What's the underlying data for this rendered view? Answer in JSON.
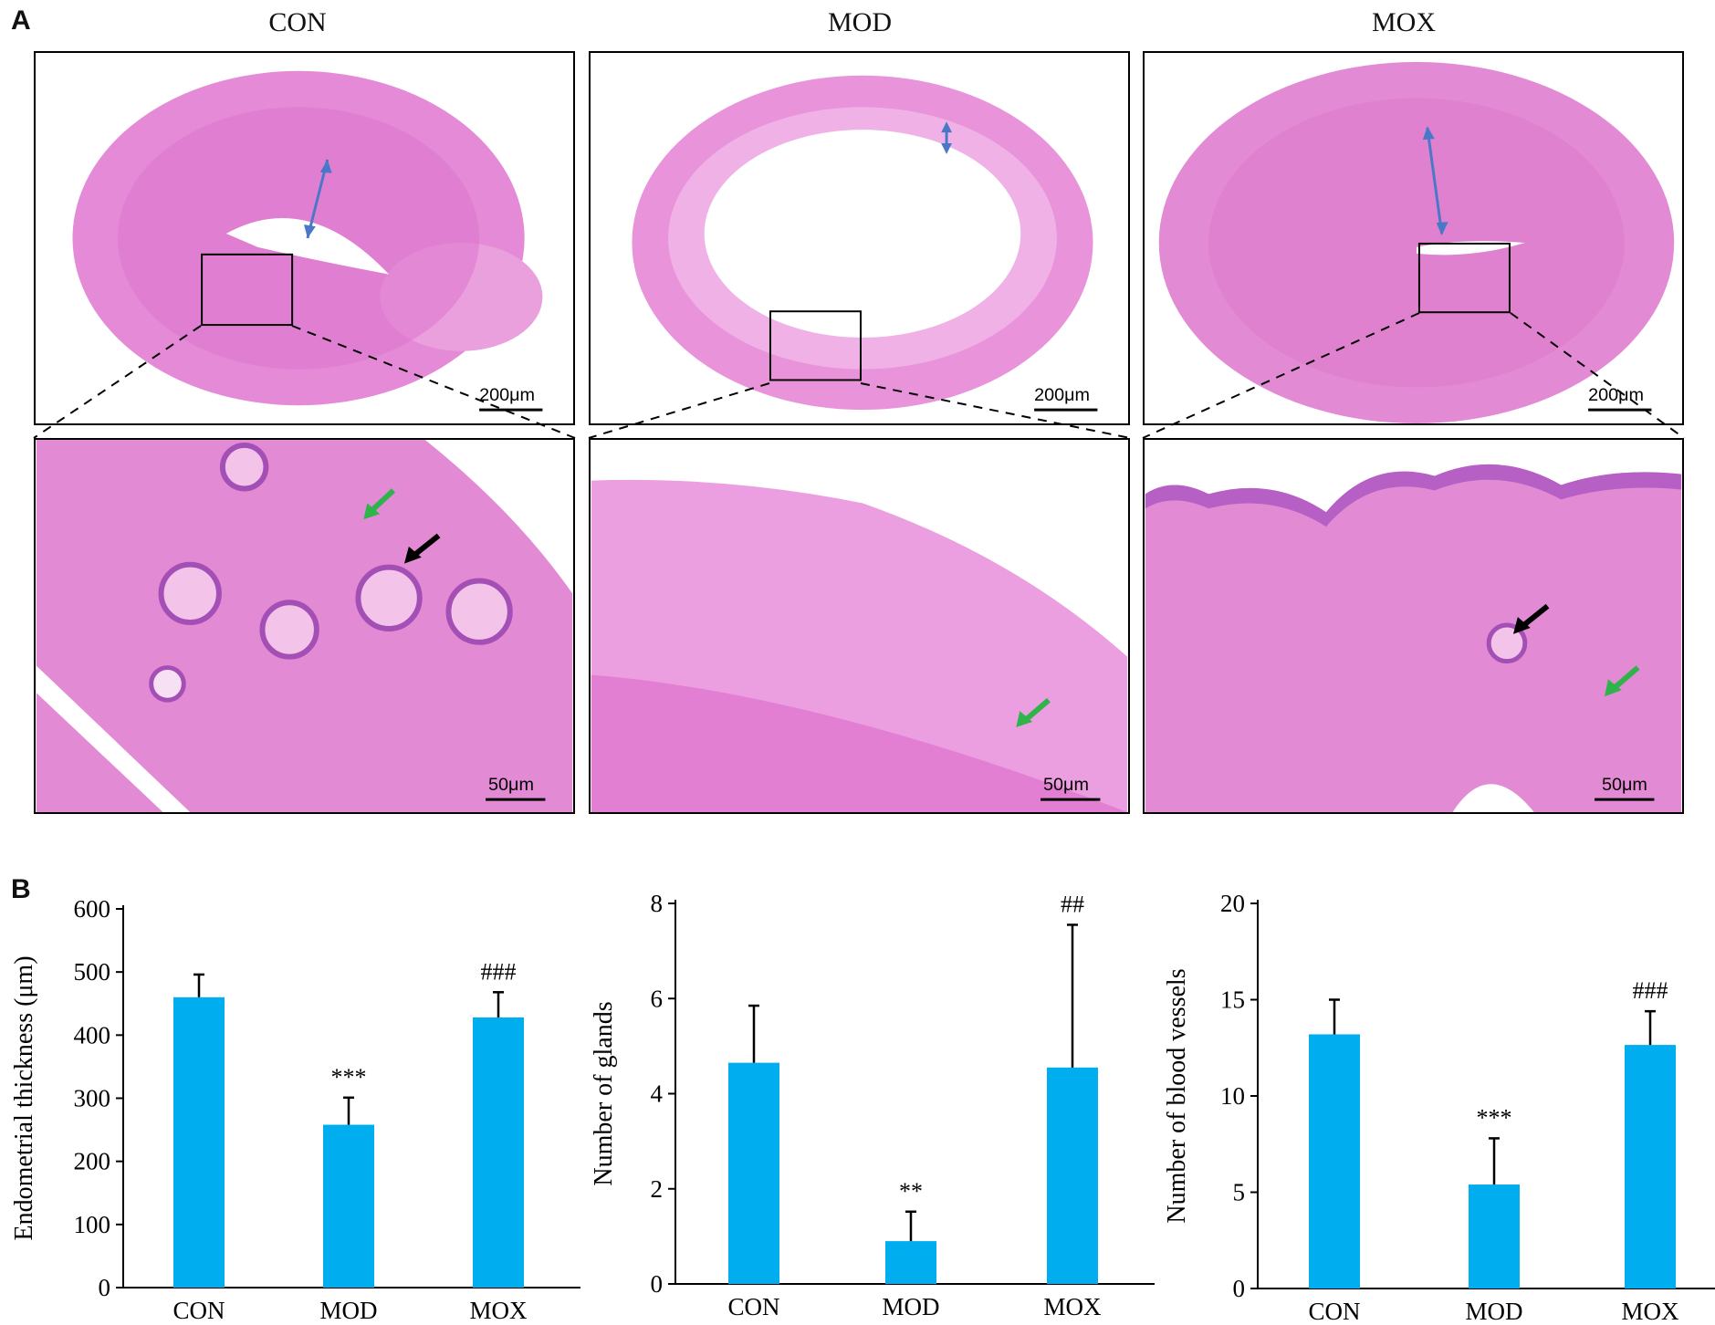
{
  "panel_a": {
    "label": "A",
    "groups": [
      "CON",
      "MOD",
      "MOX"
    ],
    "overview_scale": "200μm",
    "detail_scale": "50μm",
    "colors": {
      "tissue": "#e07fd0",
      "tissue_light": "#f0b2e6",
      "nuclei": "#8a3fa0",
      "blue_arrow": "#4a78c8",
      "black_arrow": "#000000",
      "green_arrow": "#2fb34a"
    }
  },
  "panel_b": {
    "label": "B"
  },
  "chart_data": [
    {
      "type": "bar",
      "categories": [
        "CON",
        "MOD",
        "MOX"
      ],
      "values": [
        460,
        258,
        428
      ],
      "errors": [
        36,
        43,
        40
      ],
      "significance": [
        "",
        "***",
        "###"
      ],
      "ylabel": "Endometrial thickness (μm)",
      "ylim": [
        0,
        600
      ],
      "yticks": [
        0,
        100,
        200,
        300,
        400,
        500,
        600
      ],
      "color": "#00aeef"
    },
    {
      "type": "bar",
      "categories": [
        "CON",
        "MOD",
        "MOX"
      ],
      "values": [
        4.65,
        0.9,
        4.55
      ],
      "errors": [
        1.2,
        0.62,
        3.0
      ],
      "significance": [
        "",
        "**",
        "##"
      ],
      "ylabel": "Number of glands",
      "ylim": [
        0,
        8
      ],
      "yticks": [
        0,
        2,
        4,
        6,
        8
      ],
      "color": "#00aeef"
    },
    {
      "type": "bar",
      "categories": [
        "CON",
        "MOD",
        "MOX"
      ],
      "values": [
        13.2,
        5.4,
        12.65
      ],
      "errors": [
        1.8,
        2.4,
        1.75
      ],
      "significance": [
        "",
        "***",
        "###"
      ],
      "ylabel": "Number of blood vessels",
      "ylim": [
        0,
        20
      ],
      "yticks": [
        0,
        5,
        10,
        15,
        20
      ],
      "color": "#00aeef"
    }
  ]
}
